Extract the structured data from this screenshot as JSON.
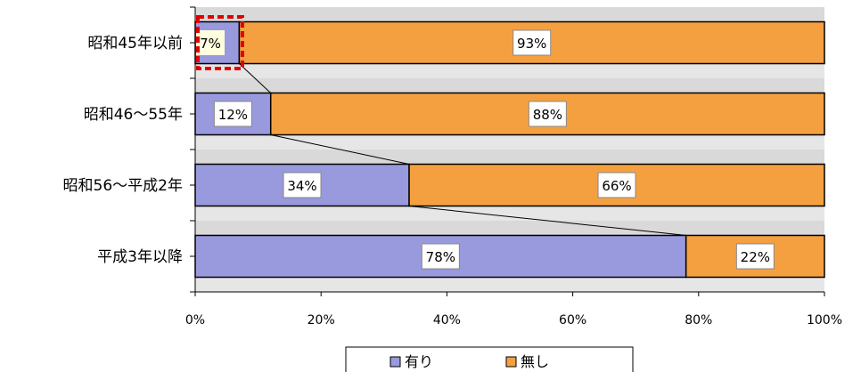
{
  "chart_data": {
    "type": "bar",
    "orientation": "horizontal",
    "stacked": true,
    "normalized": true,
    "categories": [
      "昭和45年以前",
      "昭和46～55年",
      "昭和56～平成2年",
      "平成3年以降"
    ],
    "series": [
      {
        "name": "有り",
        "values": [
          7,
          12,
          34,
          78
        ],
        "labels": [
          "7%",
          "12%",
          "34%",
          "78%"
        ],
        "color": "#9999dd"
      },
      {
        "name": "無し",
        "values": [
          93,
          88,
          66,
          22
        ],
        "labels": [
          "93%",
          "88%",
          "66%",
          "22%"
        ],
        "color": "#f5a040"
      }
    ],
    "xlim": [
      0,
      100
    ],
    "x_ticks": [
      "0%",
      "20%",
      "40%",
      "60%",
      "80%",
      "100%"
    ],
    "x_tick_values": [
      0,
      20,
      40,
      60,
      80,
      100
    ],
    "legend": {
      "placement": "bottom"
    },
    "plot_background": "#d9d9d9",
    "series_lines": true,
    "highlight": {
      "category_index": 0,
      "series_index": 0,
      "style": "red-dashed-box",
      "fill": "#ffffe0"
    }
  }
}
